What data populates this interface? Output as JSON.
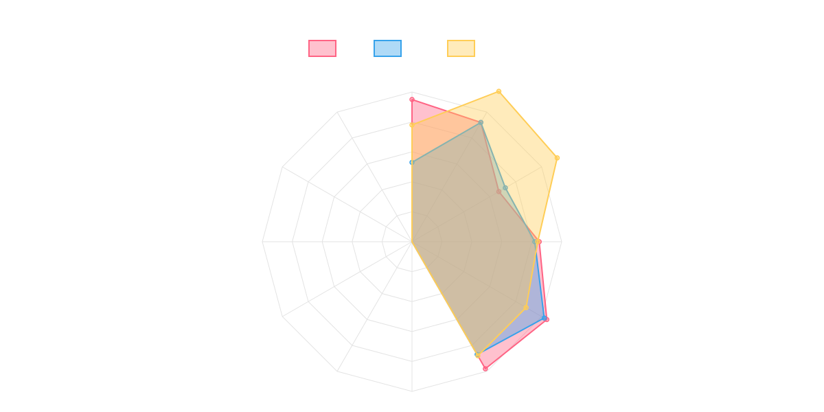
{
  "chart_data": {
    "type": "radar",
    "title": "",
    "axes_count": 12,
    "scale": {
      "min": 0,
      "max": 100,
      "grid_steps": 5
    },
    "grid": true,
    "legend_placement": "top-center",
    "series": [
      {
        "values": [
          95,
          92,
          67,
          85,
          104,
          98,
          0,
          0,
          0,
          0,
          0,
          0
        ],
        "color": "#ff6384",
        "fill": "rgba(255,99,132,0.4)"
      },
      {
        "values": [
          53,
          92,
          72,
          82,
          102,
          87,
          0,
          0,
          0,
          0,
          0,
          0
        ],
        "color": "#36a2eb",
        "fill": "rgba(54,162,235,0.4)"
      },
      {
        "values": [
          78,
          116,
          112,
          84,
          88,
          88,
          0,
          0,
          0,
          0,
          0,
          0
        ],
        "color": "#ffcd56",
        "fill": "rgba(255,205,86,0.4)"
      }
    ]
  }
}
